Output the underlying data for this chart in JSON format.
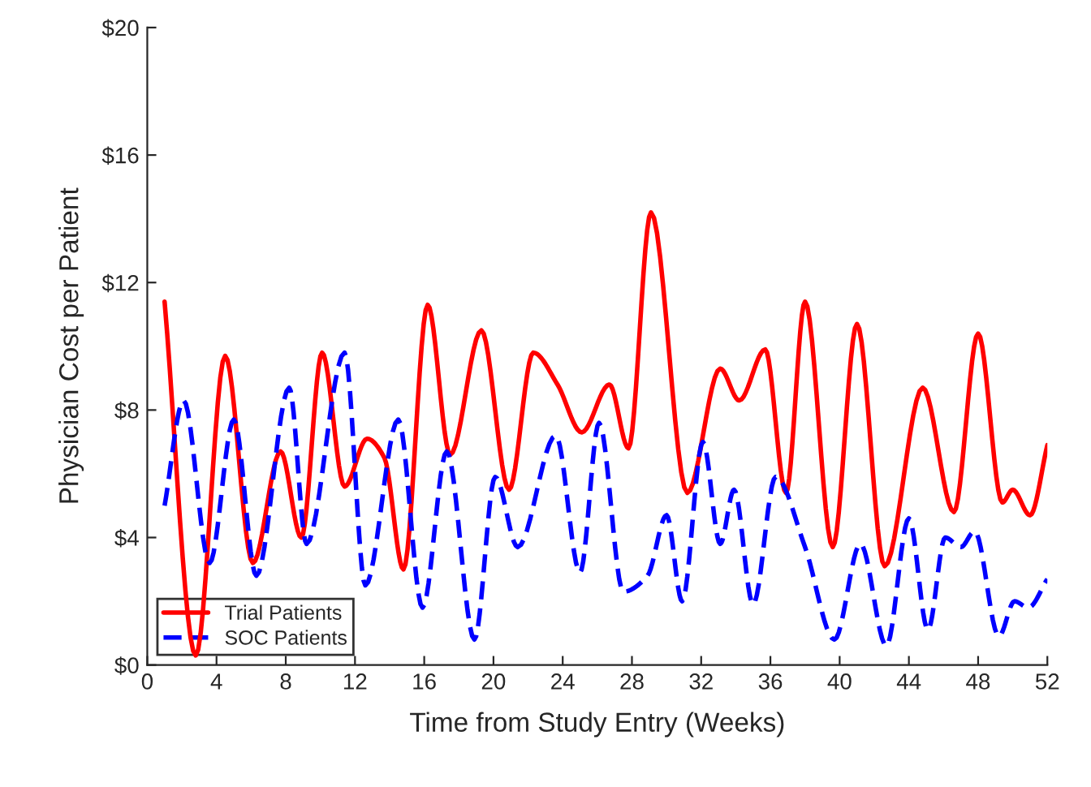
{
  "chart_data": {
    "type": "line",
    "xlabel": "Time from Study Entry (Weeks)",
    "ylabel": "Physician Cost per Patient",
    "xlim": [
      0,
      52
    ],
    "xticks": [
      0,
      4,
      8,
      12,
      16,
      20,
      24,
      28,
      32,
      36,
      40,
      44,
      48,
      52
    ],
    "ylim": [
      0,
      20
    ],
    "yticks": [
      {
        "value": 0,
        "label": "$0"
      },
      {
        "value": 4,
        "label": "$4"
      },
      {
        "value": 8,
        "label": "$8"
      },
      {
        "value": 12,
        "label": "$12"
      },
      {
        "value": 16,
        "label": "$16"
      },
      {
        "value": 20,
        "label": "$20"
      }
    ],
    "grid": false,
    "legend": "bottom left",
    "marker": "none",
    "series": [
      {
        "name": "Trial Patients",
        "color": "#ff0000",
        "line_style": "solid",
        "x": [
          1.0,
          2.8,
          4.5,
          6.1,
          7.7,
          8.9,
          10.1,
          11.4,
          12.7,
          13.7,
          14.8,
          16.2,
          17.5,
          19.3,
          20.9,
          22.3,
          23.7,
          25.1,
          26.7,
          27.8,
          29.1,
          31.2,
          33.1,
          34.2,
          35.7,
          36.9,
          38.0,
          39.6,
          41.0,
          42.6,
          44.8,
          46.6,
          48.0,
          49.4,
          50.0,
          51.0,
          52.0
        ],
        "values": [
          11.4,
          0.3,
          9.7,
          3.2,
          6.7,
          4.0,
          9.8,
          5.6,
          7.1,
          6.5,
          3.0,
          11.3,
          6.6,
          10.5,
          5.5,
          9.8,
          8.8,
          7.3,
          8.8,
          6.8,
          14.2,
          5.4,
          9.3,
          8.3,
          9.9,
          5.4,
          11.4,
          3.7,
          10.7,
          3.1,
          8.7,
          4.8,
          10.4,
          5.1,
          5.5,
          4.7,
          6.9
        ]
      },
      {
        "name": "SOC Patients",
        "color": "#0000ff",
        "line_style": "dashed",
        "x": [
          1.0,
          2.1,
          3.6,
          5.0,
          6.3,
          8.2,
          9.2,
          11.4,
          12.6,
          14.5,
          15.9,
          17.3,
          18.9,
          20.1,
          21.4,
          23.6,
          25.0,
          26.1,
          27.5,
          28.9,
          30.0,
          30.9,
          32.1,
          33.1,
          33.9,
          35.0,
          36.3,
          38.0,
          39.7,
          41.2,
          42.7,
          44.0,
          45.1,
          46.1,
          47.0,
          47.8,
          49.2,
          50.1,
          50.9,
          52.0
        ],
        "values": [
          5.0,
          8.3,
          3.2,
          7.7,
          2.8,
          8.7,
          3.8,
          9.8,
          2.5,
          7.7,
          1.8,
          6.7,
          0.8,
          5.9,
          3.7,
          7.2,
          2.9,
          7.6,
          2.3,
          2.8,
          4.7,
          2.0,
          7.0,
          3.8,
          5.5,
          1.9,
          5.9,
          3.7,
          0.8,
          3.8,
          0.6,
          4.6,
          1.1,
          4.0,
          3.7,
          4.2,
          0.9,
          2.0,
          1.8,
          2.7
        ]
      }
    ]
  }
}
